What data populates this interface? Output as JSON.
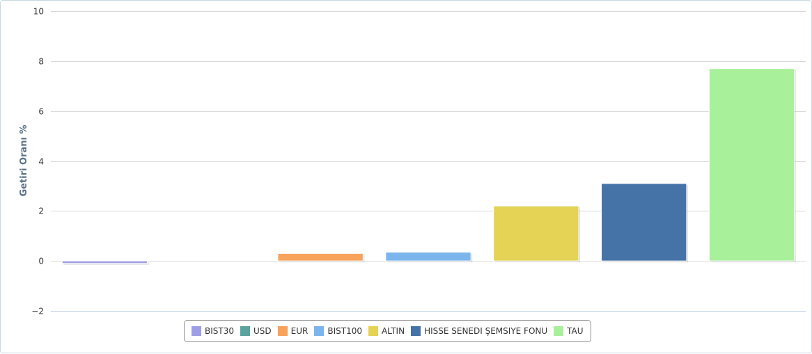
{
  "chart_data": {
    "type": "bar",
    "title": "",
    "xlabel": "",
    "ylabel": "Getiri Oranı %",
    "ylim": [
      -2,
      10
    ],
    "yticks": [
      -2,
      0,
      2,
      4,
      6,
      8,
      10
    ],
    "grid": true,
    "legend_position": "bottom-center",
    "series": [
      {
        "name": "BIST30",
        "value": -0.1,
        "color": "#9e9ee6"
      },
      {
        "name": "USD",
        "value": 0,
        "color": "#5aa39f"
      },
      {
        "name": "EUR",
        "value": 0.3,
        "color": "#f7a35c"
      },
      {
        "name": "BIST100",
        "value": 0.35,
        "color": "#7cb5ec"
      },
      {
        "name": "ALTIN",
        "value": 2.2,
        "color": "#e4d354"
      },
      {
        "name": "HISSE SENEDI ŞEMSIYE FONU",
        "value": 3.1,
        "color": "#4572a7"
      },
      {
        "name": "TAU",
        "value": 7.7,
        "color": "#a9f09b"
      }
    ]
  }
}
